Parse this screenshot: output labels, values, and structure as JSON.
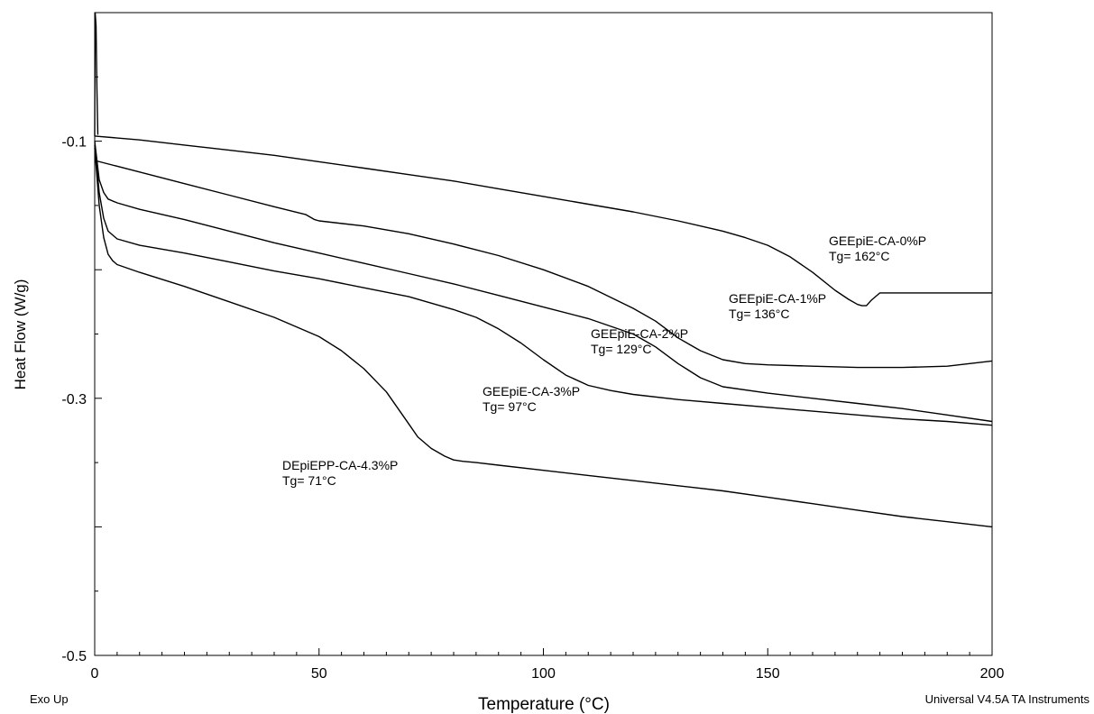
{
  "chart_data": {
    "type": "line",
    "title": "",
    "xlabel": "Temperature (°C)",
    "ylabel": "Heat Flow (W/g)",
    "xlim": [
      0,
      200
    ],
    "ylim": [
      -0.5,
      0.0
    ],
    "x_ticks": [
      0,
      50,
      100,
      150,
      200
    ],
    "x_tick_labels": [
      "0",
      "50",
      "100",
      "150",
      "200"
    ],
    "y_ticks": [
      -0.1,
      -0.3,
      -0.5
    ],
    "y_tick_labels": [
      "-0.1",
      "-0.3",
      "-0.5"
    ],
    "grid": false,
    "footer_left": "Exo Up",
    "footer_right": "Universal V4.5A TA Instruments",
    "series": [
      {
        "name": "GEEpiE-CA-0%P",
        "annotation": "Tg= 162°C",
        "x": [
          0,
          10,
          20,
          30,
          40,
          50,
          60,
          70,
          80,
          90,
          100,
          110,
          120,
          130,
          140,
          145,
          150,
          155,
          160,
          165,
          168,
          170,
          171,
          172,
          173,
          175,
          180,
          190,
          200
        ],
        "y": [
          -0.096,
          -0.099,
          -0.103,
          -0.107,
          -0.111,
          -0.116,
          -0.121,
          -0.126,
          -0.131,
          -0.137,
          -0.143,
          -0.149,
          -0.155,
          -0.162,
          -0.17,
          -0.175,
          -0.181,
          -0.19,
          -0.202,
          -0.216,
          -0.223,
          -0.227,
          -0.228,
          -0.228,
          -0.224,
          -0.218,
          -0.218,
          -0.218,
          -0.218
        ]
      },
      {
        "name": "GEEpiE-CA-1%P",
        "annotation": "Tg= 136°C",
        "x": [
          0,
          10,
          20,
          30,
          40,
          47,
          49,
          50,
          60,
          70,
          80,
          90,
          100,
          110,
          120,
          125,
          130,
          135,
          140,
          145,
          150,
          160,
          170,
          180,
          190,
          200
        ],
        "y": [
          -0.115,
          -0.124,
          -0.133,
          -0.142,
          -0.151,
          -0.157,
          -0.161,
          -0.162,
          -0.166,
          -0.172,
          -0.18,
          -0.189,
          -0.2,
          -0.213,
          -0.23,
          -0.24,
          -0.253,
          -0.263,
          -0.27,
          -0.273,
          -0.274,
          -0.275,
          -0.276,
          -0.276,
          -0.275,
          -0.271
        ]
      },
      {
        "name": "GEEpiE-CA-2%P",
        "annotation": "Tg= 129°C",
        "x": [
          0,
          1,
          2,
          3,
          5,
          10,
          20,
          30,
          40,
          50,
          60,
          70,
          80,
          90,
          100,
          110,
          120,
          125,
          130,
          135,
          140,
          150,
          160,
          170,
          180,
          190,
          200
        ],
        "y": [
          -0.1,
          -0.13,
          -0.14,
          -0.145,
          -0.148,
          -0.153,
          -0.161,
          -0.17,
          -0.179,
          -0.187,
          -0.195,
          -0.203,
          -0.211,
          -0.22,
          -0.229,
          -0.238,
          -0.25,
          -0.26,
          -0.273,
          -0.284,
          -0.291,
          -0.296,
          -0.3,
          -0.304,
          -0.308,
          -0.313,
          -0.318
        ]
      },
      {
        "name": "GEEpiE-CA-3%P",
        "annotation": "Tg= 97°C",
        "x": [
          0,
          1,
          2,
          3,
          5,
          10,
          20,
          30,
          40,
          50,
          60,
          70,
          80,
          85,
          90,
          95,
          100,
          105,
          110,
          115,
          120,
          130,
          140,
          150,
          160,
          170,
          180,
          190,
          200
        ],
        "y": [
          -0.103,
          -0.14,
          -0.16,
          -0.17,
          -0.176,
          -0.181,
          -0.187,
          -0.194,
          -0.201,
          -0.207,
          -0.214,
          -0.221,
          -0.231,
          -0.237,
          -0.246,
          -0.257,
          -0.27,
          -0.282,
          -0.29,
          -0.294,
          -0.297,
          -0.301,
          -0.304,
          -0.307,
          -0.31,
          -0.313,
          -0.316,
          -0.318,
          -0.321
        ]
      },
      {
        "name": "DEpiEPP-CA-4.3%P",
        "annotation": "Tg= 71°C",
        "x": [
          0,
          1,
          2,
          3,
          4,
          5,
          10,
          20,
          30,
          40,
          50,
          55,
          60,
          65,
          70,
          72,
          75,
          78,
          80,
          82,
          85,
          90,
          100,
          110,
          120,
          130,
          140,
          150,
          160,
          170,
          180,
          190,
          200
        ],
        "y": [
          -0.105,
          -0.15,
          -0.175,
          -0.188,
          -0.193,
          -0.196,
          -0.202,
          -0.213,
          -0.225,
          -0.237,
          -0.252,
          -0.263,
          -0.277,
          -0.295,
          -0.32,
          -0.33,
          -0.339,
          -0.345,
          -0.348,
          -0.349,
          -0.35,
          -0.352,
          -0.356,
          -0.36,
          -0.364,
          -0.368,
          -0.372,
          -0.377,
          -0.382,
          -0.387,
          -0.392,
          -0.396,
          -0.4
        ]
      }
    ],
    "annotations": [
      {
        "series": 0,
        "label": "GEEpiE-CA-0%P",
        "sub": "Tg= 162°C"
      },
      {
        "series": 1,
        "label": "GEEpiE-CA-1%P",
        "sub": "Tg= 136°C"
      },
      {
        "series": 2,
        "label": "GEEpiE-CA-2%P",
        "sub": "Tg= 129°C"
      },
      {
        "series": 3,
        "label": "GEEpiE-CA-3%P",
        "sub": "Tg= 97°C"
      },
      {
        "series": 4,
        "label": "DEpiEPP-CA-4.3%P",
        "sub": "Tg= 71°C"
      }
    ]
  }
}
